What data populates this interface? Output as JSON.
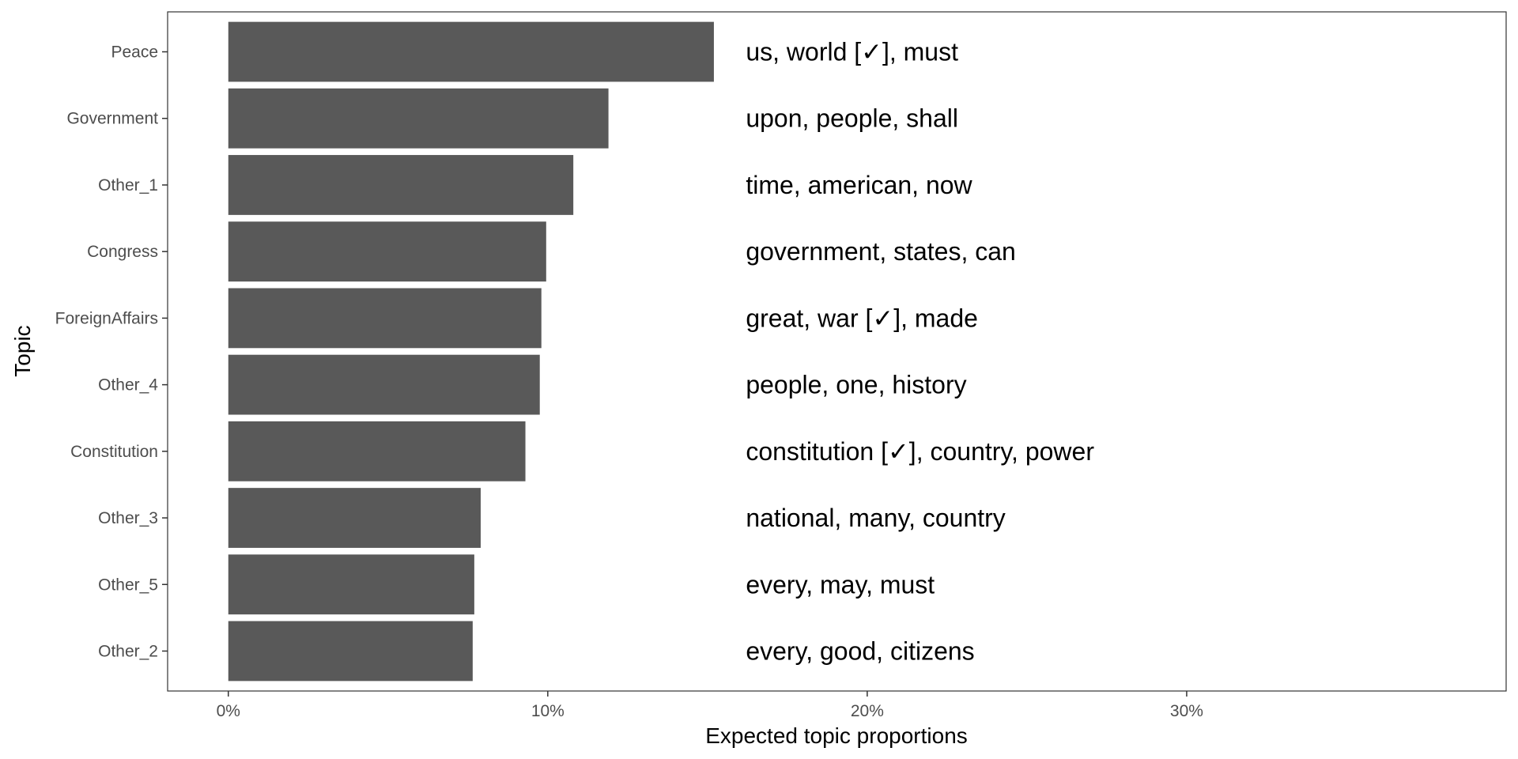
{
  "chart_data": {
    "type": "bar",
    "orientation": "horizontal",
    "xlabel": "Expected topic proportions",
    "ylabel": "Topic",
    "xlim": [
      -0.019,
      0.4
    ],
    "x_ticks": [
      0,
      0.1,
      0.2,
      0.3
    ],
    "x_tick_labels": [
      "0%",
      "10%",
      "20%",
      "30%"
    ],
    "grid": false,
    "bar_color": "#595959",
    "categories": [
      "Peace",
      "Government",
      "Other_1",
      "Congress",
      "ForeignAffairs",
      "Other_4",
      "Constitution",
      "Other_3",
      "Other_5",
      "Other_2"
    ],
    "values": [
      0.152,
      0.119,
      0.108,
      0.0995,
      0.098,
      0.0975,
      0.093,
      0.079,
      0.077,
      0.0765
    ],
    "annotations": [
      "us, world [✓], must",
      "upon, people, shall",
      "time, american, now",
      "government, states, can",
      "great, war [✓], made",
      "people, one, history",
      "constitution [✓], country, power",
      "national, many, country",
      "every, may, must",
      "every, good, citizens"
    ],
    "annotation_x": 0.162
  }
}
